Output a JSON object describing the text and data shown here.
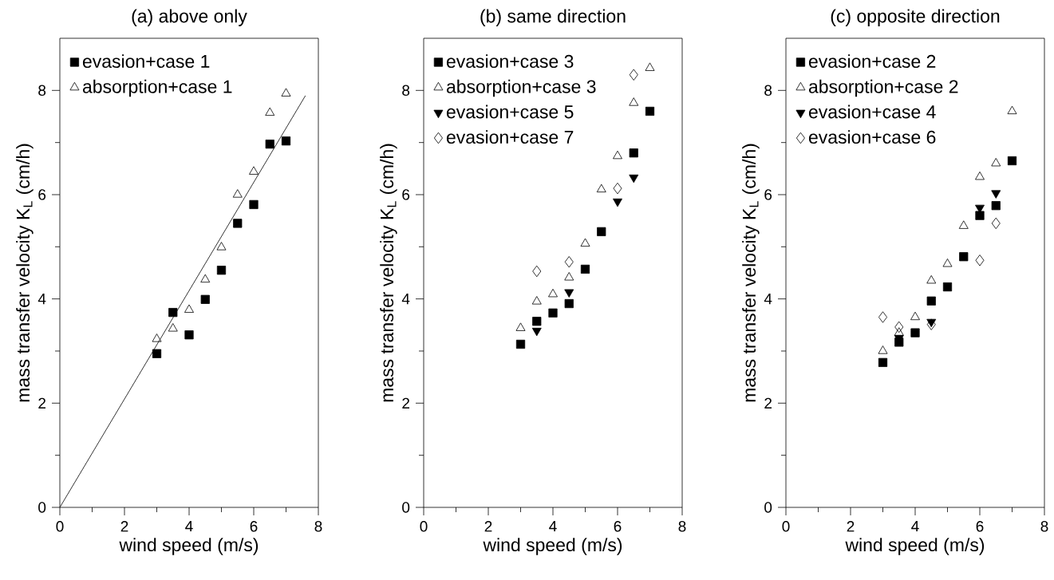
{
  "chart_data": [
    {
      "type": "scatter",
      "title": "(a) above only",
      "xlabel": "wind speed (m/s)",
      "ylabel": "mass transfer velocity K$_{L}$ (cm/h)",
      "xlim": [
        0,
        8
      ],
      "ylim": [
        0,
        9
      ],
      "xticks": [
        0,
        2,
        4,
        6,
        8
      ],
      "yticks": [
        0,
        2,
        4,
        6,
        8
      ],
      "legend": "top left",
      "grid": false,
      "x": [
        3,
        3.5,
        4,
        4.5,
        5,
        5.5,
        6,
        6.5,
        7
      ],
      "series": [
        {
          "name": "evasion+case 1",
          "color": "#000000",
          "marker": "square",
          "values": [
            2.95,
            3.74,
            3.31,
            3.99,
            4.55,
            5.45,
            5.81,
            6.97,
            7.03
          ]
        },
        {
          "name": "absorption+case 1",
          "color": "#000000",
          "marker": "triangle",
          "values": [
            3.23,
            3.43,
            3.79,
            4.37,
            4.99,
            6.0,
            6.44,
            7.57,
            7.94
          ]
        },
        {
          "type": "line",
          "color": "#000000",
          "marker": "none",
          "x": [
            0,
            7.6
          ],
          "values": [
            0,
            7.9
          ]
        }
      ]
    },
    {
      "type": "scatter",
      "title": "(b) same direction",
      "xlabel": "wind speed (m/s)",
      "ylabel": "mass transfer velocity K$_{L}$ (cm/h)",
      "xlim": [
        0,
        8
      ],
      "ylim": [
        0,
        9
      ],
      "xticks": [
        0,
        2,
        4,
        6,
        8
      ],
      "yticks": [
        0,
        2,
        4,
        6,
        8
      ],
      "legend": "top left",
      "grid": false,
      "series": [
        {
          "name": "evasion+case 3",
          "color": "#000000",
          "marker": "square",
          "x": [
            3,
            3.5,
            4,
            4.5,
            5,
            5.5,
            6.5,
            7
          ],
          "values": [
            3.13,
            3.57,
            3.73,
            3.91,
            4.57,
            5.29,
            6.8,
            7.6
          ]
        },
        {
          "name": "absorption+case 3",
          "color": "#000000",
          "marker": "triangle",
          "x": [
            3,
            3.5,
            4,
            4.5,
            5,
            5.5,
            6,
            6.5,
            7
          ],
          "values": [
            3.44,
            3.95,
            4.09,
            4.41,
            5.06,
            6.1,
            6.74,
            7.76,
            8.43
          ]
        },
        {
          "name": "evasion+case 5",
          "color": "#000000",
          "marker": "triangle-down",
          "x": [
            3.5,
            4.5,
            6,
            6.5
          ],
          "values": [
            3.39,
            4.13,
            5.87,
            6.33
          ]
        },
        {
          "name": "evasion+case 7",
          "color": "#000000",
          "marker": "diamond",
          "x": [
            3.5,
            4.5,
            6,
            6.5
          ],
          "values": [
            4.53,
            4.71,
            6.12,
            8.3
          ]
        }
      ]
    },
    {
      "type": "scatter",
      "title": "(c) opposite direction",
      "xlabel": "wind speed (m/s)",
      "ylabel": "mass transfer velocity K$_{L}$ (cm/h)",
      "xlim": [
        0,
        8
      ],
      "ylim": [
        0,
        9
      ],
      "xticks": [
        0,
        2,
        4,
        6,
        8
      ],
      "yticks": [
        0,
        2,
        4,
        6,
        8
      ],
      "legend": "top left",
      "grid": false,
      "series": [
        {
          "name": "evasion+case 2",
          "color": "#000000",
          "marker": "square",
          "x": [
            3,
            3.5,
            4,
            4.5,
            5,
            5.5,
            6,
            6.5,
            7
          ],
          "values": [
            2.78,
            3.17,
            3.35,
            3.96,
            4.23,
            4.81,
            5.6,
            5.79,
            6.65
          ]
        },
        {
          "name": "absorption+case 2",
          "color": "#000000",
          "marker": "triangle",
          "x": [
            3,
            3.5,
            4,
            4.5,
            5,
            5.5,
            6,
            6.5,
            7
          ],
          "values": [
            3.0,
            3.35,
            3.65,
            4.35,
            4.67,
            5.4,
            6.34,
            6.6,
            7.6
          ]
        },
        {
          "name": "evasion+case 4",
          "color": "#000000",
          "marker": "triangle-down",
          "x": [
            3.5,
            4.5,
            6,
            6.5
          ],
          "values": [
            3.25,
            3.56,
            5.75,
            6.03
          ]
        },
        {
          "name": "evasion+case 6",
          "color": "#000000",
          "marker": "diamond",
          "x": [
            3,
            3.5,
            4.5,
            6,
            6.5
          ],
          "values": [
            3.65,
            3.46,
            3.51,
            4.74,
            5.45
          ]
        }
      ]
    }
  ]
}
